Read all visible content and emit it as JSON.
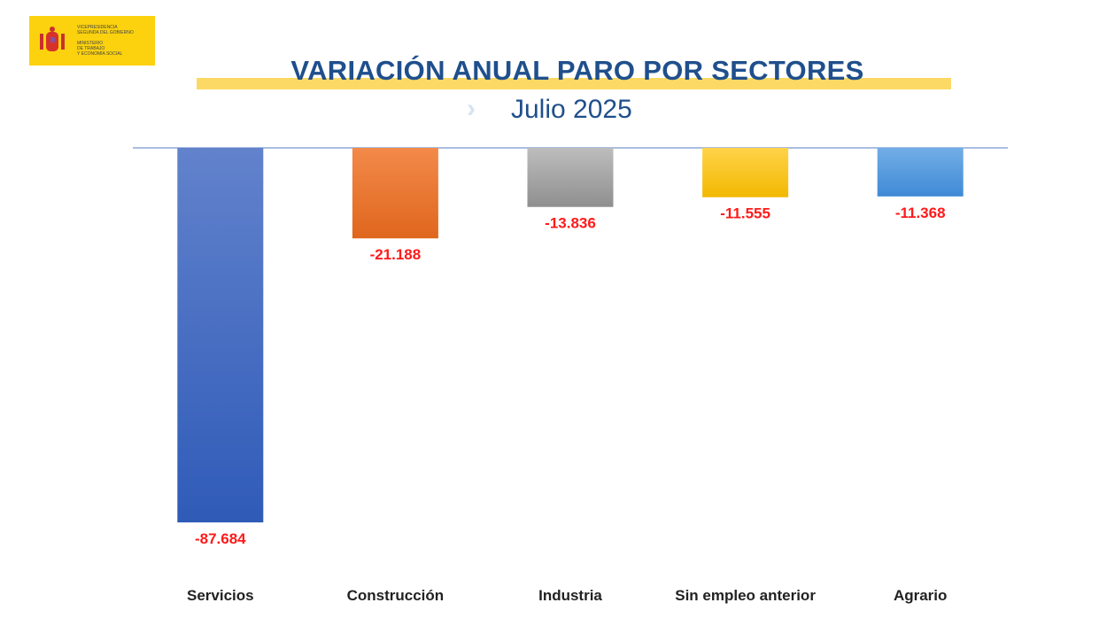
{
  "logo": {
    "text": "VICEPRESIDENCIA\nSEGUNDA DEL GOBIERNO\n\nMINISTERIO\nDE TRABAJO\nY ECONOMÍA SOCIAL",
    "background": "#fcd20f"
  },
  "chart_data": {
    "type": "bar",
    "title": "VARIACIÓN ANUAL PARO POR SECTORES",
    "subtitle": "Julio 2025",
    "categories": [
      "Servicios",
      "Construcción",
      "Industria",
      "Sin empleo anterior",
      "Agrario"
    ],
    "values": [
      -87684,
      -21188,
      -13836,
      -11555,
      -11368
    ],
    "data_labels": [
      "-87.684",
      "-21.188",
      "-13.836",
      "-11.555",
      "-11.368"
    ],
    "colors": [
      [
        "#6282cc",
        "#2f5bb8"
      ],
      [
        "#f28a4a",
        "#e0661d"
      ],
      [
        "#bdbdbd",
        "#8f8f8f"
      ],
      [
        "#ffd34a",
        "#f2b800"
      ],
      [
        "#72aee6",
        "#3f8ad6"
      ]
    ],
    "label_color": "#ff1a1a",
    "ylim": [
      -100000,
      0
    ],
    "grid": false,
    "legend": "none"
  }
}
